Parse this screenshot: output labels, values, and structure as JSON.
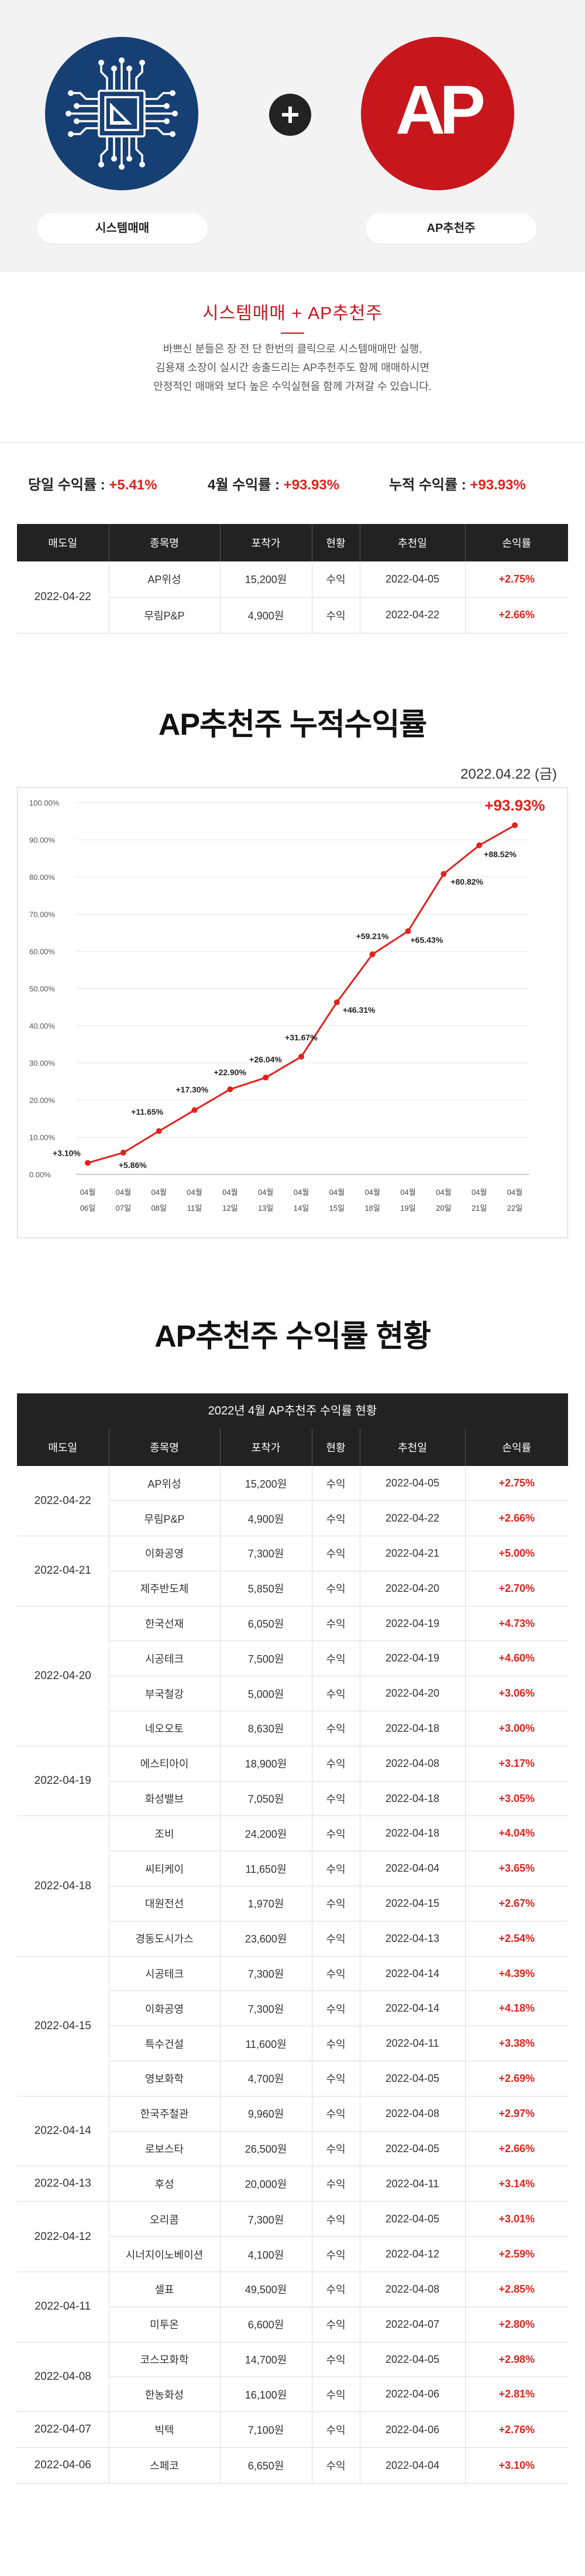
{
  "hero": {
    "left_label": "시스템매매",
    "right_label": "AP추천주",
    "right_logo_text": "AP",
    "plus_icon": "plus-icon"
  },
  "intro": {
    "title": "시스템매매 + AP추천주",
    "line1": "바쁘신 분들은 장 전 단 한번의 클릭으로 시스템매매만 실행,",
    "line2": "김용재 소장이 실시간 송출드리는 AP추천주도 함께 매매하시면",
    "line3": "안정적인 매매와 보다 높은 수익실현을 함께 가져갈 수 있습니다."
  },
  "summary": {
    "daily_label": "당일 수익률 : ",
    "daily_value": "+5.41%",
    "month_label": "4월 수익률 : ",
    "month_value": "+93.93%",
    "total_label": "누적 수익률 : ",
    "total_value": "+93.93%"
  },
  "columns": [
    "매도일",
    "종목명",
    "포착가",
    "현황",
    "추천일",
    "손익률"
  ],
  "today_table": {
    "date": "2022-04-22",
    "rows": [
      {
        "name": "AP위성",
        "price": "15,200원",
        "status": "수익",
        "rec": "2022-04-05",
        "pct": "+2.75%"
      },
      {
        "name": "무림P&P",
        "price": "4,900원",
        "status": "수익",
        "rec": "2022-04-22",
        "pct": "+2.66%"
      }
    ]
  },
  "chart_section": {
    "heading": "AP추천주 누적수익률",
    "date": "2022.04.22 (금)"
  },
  "chart_data": {
    "type": "line",
    "x": [
      "04월 06일",
      "04월 07일",
      "04월 08일",
      "04월 11일",
      "04월 12일",
      "04월 13일",
      "04월 14일",
      "04월 15일",
      "04월 18일",
      "04월 19일",
      "04월 20일",
      "04월 21일",
      "04월 22일"
    ],
    "values": [
      3.1,
      5.86,
      11.65,
      17.3,
      22.9,
      26.04,
      31.67,
      46.31,
      59.21,
      65.43,
      80.82,
      88.52,
      93.93
    ],
    "labels": [
      "+3.10%",
      "+5.86%",
      "+11.65%",
      "+17.30%",
      "+22.90%",
      "+26.04%",
      "+31.67%",
      "+46.31%",
      "+59.21%",
      "+65.43%",
      "+80.82%",
      "+88.52%",
      "+93.93%"
    ],
    "yticks": [
      "0.00%",
      "10.00%",
      "20.00%",
      "30.00%",
      "40.00%",
      "50.00%",
      "60.00%",
      "70.00%",
      "80.00%",
      "90.00%",
      "100.00%"
    ],
    "ylim": [
      0,
      100
    ],
    "grid": true,
    "line_color": "#e3211b"
  },
  "status_section": {
    "heading": "AP추천주 수익률 현황",
    "caption": "2022년 4월 AP추천주 수익률 현황"
  },
  "groups": [
    {
      "date": "2022-04-22",
      "rows": [
        {
          "name": "AP위성",
          "price": "15,200원",
          "status": "수익",
          "rec": "2022-04-05",
          "pct": "+2.75%"
        },
        {
          "name": "무림P&P",
          "price": "4,900원",
          "status": "수익",
          "rec": "2022-04-22",
          "pct": "+2.66%"
        }
      ]
    },
    {
      "date": "2022-04-21",
      "rows": [
        {
          "name": "이화공영",
          "price": "7,300원",
          "status": "수익",
          "rec": "2022-04-21",
          "pct": "+5.00%"
        },
        {
          "name": "제주반도체",
          "price": "5,850원",
          "status": "수익",
          "rec": "2022-04-20",
          "pct": "+2.70%"
        }
      ]
    },
    {
      "date": "2022-04-20",
      "rows": [
        {
          "name": "한국선재",
          "price": "6,050원",
          "status": "수익",
          "rec": "2022-04-19",
          "pct": "+4.73%"
        },
        {
          "name": "시공테크",
          "price": "7,500원",
          "status": "수익",
          "rec": "2022-04-19",
          "pct": "+4.60%"
        },
        {
          "name": "부국철강",
          "price": "5,000원",
          "status": "수익",
          "rec": "2022-04-20",
          "pct": "+3.06%"
        },
        {
          "name": "네오오토",
          "price": "8,630원",
          "status": "수익",
          "rec": "2022-04-18",
          "pct": "+3.00%"
        }
      ]
    },
    {
      "date": "2022-04-19",
      "rows": [
        {
          "name": "에스티아이",
          "price": "18,900원",
          "status": "수익",
          "rec": "2022-04-08",
          "pct": "+3.17%"
        },
        {
          "name": "화성밸브",
          "price": "7,050원",
          "status": "수익",
          "rec": "2022-04-18",
          "pct": "+3.05%"
        }
      ]
    },
    {
      "date": "2022-04-18",
      "rows": [
        {
          "name": "조비",
          "price": "24,200원",
          "status": "수익",
          "rec": "2022-04-18",
          "pct": "+4.04%"
        },
        {
          "name": "씨티케이",
          "price": "11,650원",
          "status": "수익",
          "rec": "2022-04-04",
          "pct": "+3.65%"
        },
        {
          "name": "대원전선",
          "price": "1,970원",
          "status": "수익",
          "rec": "2022-04-15",
          "pct": "+2.67%"
        },
        {
          "name": "경동도시가스",
          "price": "23,600원",
          "status": "수익",
          "rec": "2022-04-13",
          "pct": "+2.54%"
        }
      ]
    },
    {
      "date": "2022-04-15",
      "rows": [
        {
          "name": "시공테크",
          "price": "7,300원",
          "status": "수익",
          "rec": "2022-04-14",
          "pct": "+4.39%"
        },
        {
          "name": "이화공영",
          "price": "7,300원",
          "status": "수익",
          "rec": "2022-04-14",
          "pct": "+4.18%"
        },
        {
          "name": "특수건설",
          "price": "11,600원",
          "status": "수익",
          "rec": "2022-04-11",
          "pct": "+3.38%"
        },
        {
          "name": "영보화학",
          "price": "4,700원",
          "status": "수익",
          "rec": "2022-04-05",
          "pct": "+2.69%"
        }
      ]
    },
    {
      "date": "2022-04-14",
      "rows": [
        {
          "name": "한국주철관",
          "price": "9,960원",
          "status": "수익",
          "rec": "2022-04-08",
          "pct": "+2.97%"
        },
        {
          "name": "로보스타",
          "price": "26,500원",
          "status": "수익",
          "rec": "2022-04-05",
          "pct": "+2.66%"
        }
      ]
    },
    {
      "date": "2022-04-13",
      "rows": [
        {
          "name": "후성",
          "price": "20,000원",
          "status": "수익",
          "rec": "2022-04-11",
          "pct": "+3.14%"
        }
      ]
    },
    {
      "date": "2022-04-12",
      "rows": [
        {
          "name": "오리콤",
          "price": "7,300원",
          "status": "수익",
          "rec": "2022-04-05",
          "pct": "+3.01%"
        },
        {
          "name": "시너지이노베이션",
          "price": "4,100원",
          "status": "수익",
          "rec": "2022-04-12",
          "pct": "+2.59%"
        }
      ]
    },
    {
      "date": "2022-04-11",
      "rows": [
        {
          "name": "셀표",
          "price": "49,500원",
          "status": "수익",
          "rec": "2022-04-08",
          "pct": "+2.85%"
        },
        {
          "name": "미투온",
          "price": "6,600원",
          "status": "수익",
          "rec": "2022-04-07",
          "pct": "+2.80%"
        }
      ]
    },
    {
      "date": "2022-04-08",
      "rows": [
        {
          "name": "코스모화학",
          "price": "14,700원",
          "status": "수익",
          "rec": "2022-04-05",
          "pct": "+2.98%"
        },
        {
          "name": "한농화성",
          "price": "16,100원",
          "status": "수익",
          "rec": "2022-04-06",
          "pct": "+2.81%"
        }
      ]
    },
    {
      "date": "2022-04-07",
      "rows": [
        {
          "name": "빅텍",
          "price": "7,100원",
          "status": "수익",
          "rec": "2022-04-06",
          "pct": "+2.76%"
        }
      ]
    },
    {
      "date": "2022-04-06",
      "rows": [
        {
          "name": "스페코",
          "price": "6,650원",
          "status": "수익",
          "rec": "2022-04-04",
          "pct": "+3.10%"
        }
      ]
    }
  ]
}
